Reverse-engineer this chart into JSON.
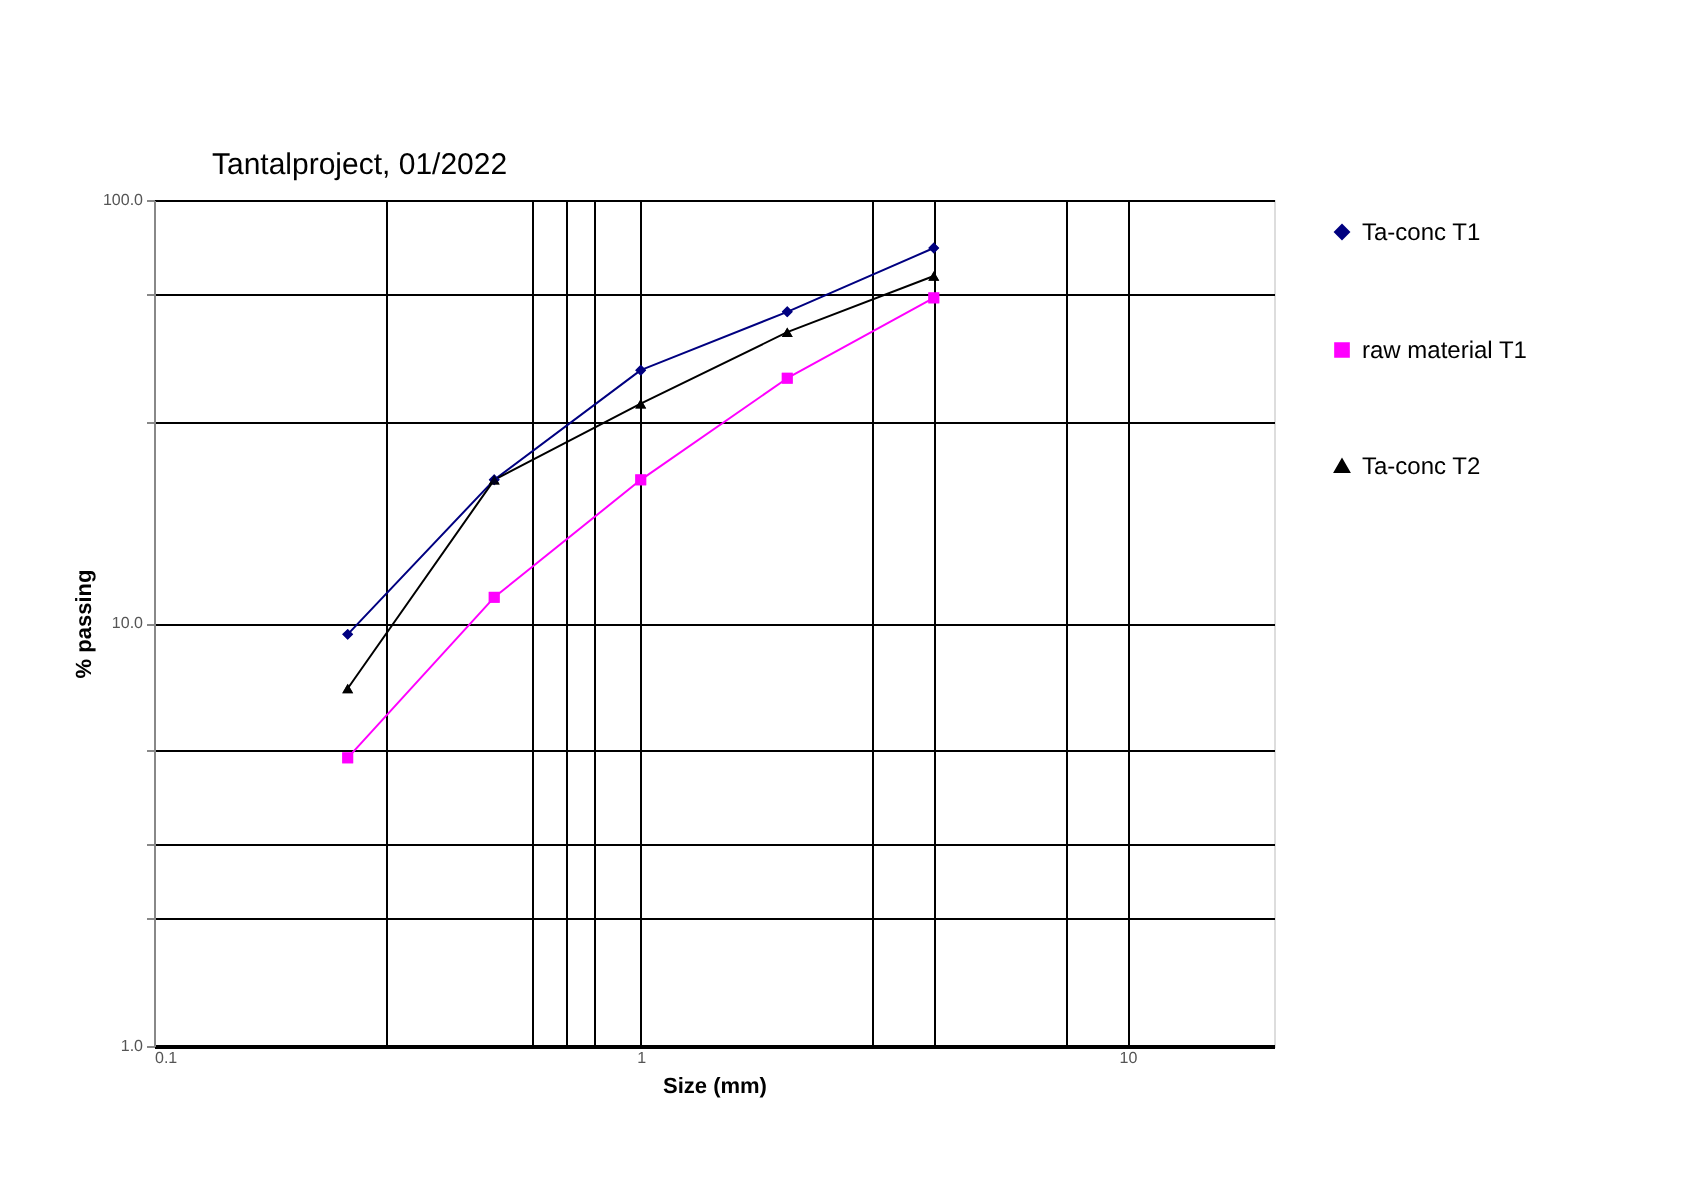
{
  "chart_data": {
    "type": "line",
    "title": "Tantalproject, 01/2022",
    "xlabel": "Size (mm)",
    "ylabel": "% passing",
    "log": "xy",
    "grid": true,
    "legend": "right",
    "xlim": [
      0.1,
      20
    ],
    "ylim": [
      1,
      100
    ],
    "xticks": [
      {
        "value": 0.1,
        "label": "0.1"
      },
      {
        "value": 0.3,
        "label": null
      },
      {
        "value": 0.6,
        "label": null
      },
      {
        "value": 0.7,
        "label": null
      },
      {
        "value": 0.8,
        "label": null
      },
      1,
      {
        "value": 3,
        "label": null
      },
      {
        "value": 4,
        "label": null
      },
      {
        "value": 7.5,
        "label": null
      },
      10
    ],
    "yticks": [
      {
        "value": 1,
        "label": "1.0"
      },
      {
        "value": 2,
        "label": null
      },
      {
        "value": 3,
        "label": null
      },
      {
        "value": 5,
        "label": null
      },
      {
        "value": 10,
        "label": "10.0"
      },
      {
        "value": 30,
        "label": null
      },
      {
        "value": 60,
        "label": null
      },
      {
        "value": 100,
        "label": "100.0"
      }
    ],
    "x": [
      0.25,
      0.5,
      1,
      2,
      4
    ],
    "series": [
      {
        "name": "Ta-conc T1",
        "color": "#000080",
        "marker": "diamond",
        "values": [
          9.4,
          21.8,
          39.6,
          54.4,
          77.0
        ]
      },
      {
        "name": "raw material T1",
        "color": "#ff00ff",
        "marker": "square",
        "values": [
          4.8,
          11.5,
          21.8,
          37.9,
          58.7
        ]
      },
      {
        "name": "Ta-conc T2",
        "color": "#000000",
        "marker": "triangle",
        "values": [
          7.0,
          21.8,
          33.0,
          48.7,
          66.1
        ]
      }
    ]
  }
}
